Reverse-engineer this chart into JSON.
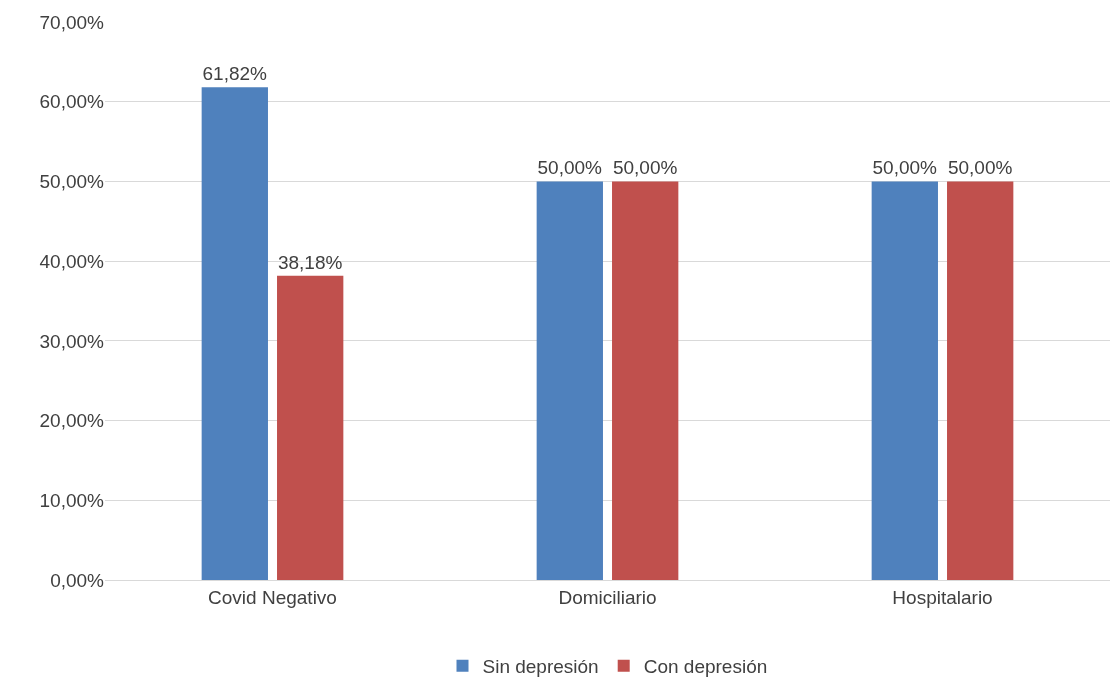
{
  "chart_data": {
    "type": "bar",
    "categories": [
      "Covid Negativo",
      "Domiciliario",
      "Hospitalario"
    ],
    "series": [
      {
        "name": "Sin depresión",
        "color": "#4f81bd",
        "values": [
          61.82,
          50,
          50
        ],
        "value_labels": [
          "61,82%",
          "50,00%",
          "50,00%"
        ]
      },
      {
        "name": "Con depresión",
        "color": "#c0504d",
        "values": [
          38.18,
          50,
          50
        ],
        "value_labels": [
          "38,18%",
          "50,00%",
          "50,00%"
        ]
      }
    ],
    "ylim": [
      0,
      70
    ],
    "yticks": [
      {
        "value": 0,
        "label": "0,00%"
      },
      {
        "value": 10,
        "label": "10,00%"
      },
      {
        "value": 20,
        "label": "20,00%"
      },
      {
        "value": 30,
        "label": "30,00%"
      },
      {
        "value": 40,
        "label": "40,00%"
      },
      {
        "value": 50,
        "label": "50,00%"
      },
      {
        "value": 60,
        "label": "60,00%"
      },
      {
        "value": 70,
        "label": "70,00%"
      }
    ],
    "grid": "y",
    "legend": "bottom"
  }
}
